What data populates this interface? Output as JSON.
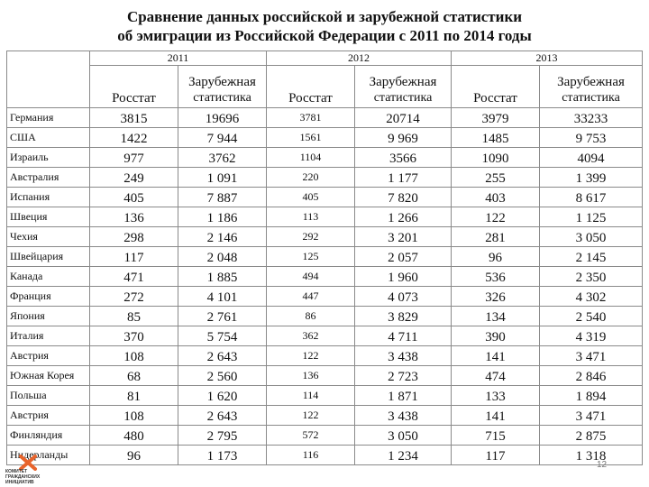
{
  "title_line1": "Сравнение данных российской и зарубежной статистики",
  "title_line2": "об эмиграции из Российской Федерации с 2011 по 2014 годы",
  "years": [
    "2011",
    "2012",
    "2013"
  ],
  "col_rosstat": "Росстат",
  "col_foreign_1": "Зарубежная",
  "col_foreign_2": "статистика",
  "rows": [
    {
      "country": "Германия",
      "r2011": "3815",
      "z2011": "19696",
      "r2012": "3781",
      "z2012": "20714",
      "r2013": "3979",
      "z2013": "33233"
    },
    {
      "country": "США",
      "r2011": "1422",
      "z2011": "7 944",
      "r2012": "1561",
      "z2012": "9 969",
      "r2013": "1485",
      "z2013": "9 753"
    },
    {
      "country": "Израиль",
      "r2011": "977",
      "z2011": "3762",
      "r2012": "1104",
      "z2012": "3566",
      "r2013": "1090",
      "z2013": "4094"
    },
    {
      "country": "Австралия",
      "r2011": "249",
      "z2011": "1 091",
      "r2012": "220",
      "z2012": "1 177",
      "r2013": "255",
      "z2013": "1 399"
    },
    {
      "country": "Испания",
      "r2011": "405",
      "z2011": "7 887",
      "r2012": "405",
      "z2012": "7 820",
      "r2013": "403",
      "z2013": "8 617"
    },
    {
      "country": "Швеция",
      "r2011": "136",
      "z2011": "1 186",
      "r2012": "113",
      "z2012": "1 266",
      "r2013": "122",
      "z2013": "1 125"
    },
    {
      "country": "Чехия",
      "r2011": "298",
      "z2011": "2 146",
      "r2012": "292",
      "z2012": "3 201",
      "r2013": "281",
      "z2013": "3 050"
    },
    {
      "country": "Швейцария",
      "r2011": "117",
      "z2011": "2 048",
      "r2012": "125",
      "z2012": "2 057",
      "r2013": "96",
      "z2013": "2 145"
    },
    {
      "country": "Канада",
      "r2011": "471",
      "z2011": "1 885",
      "r2012": "494",
      "z2012": "1 960",
      "r2013": "536",
      "z2013": "2 350"
    },
    {
      "country": "Франция",
      "r2011": "272",
      "z2011": "4 101",
      "r2012": "447",
      "z2012": "4 073",
      "r2013": "326",
      "z2013": "4 302"
    },
    {
      "country": "Япония",
      "r2011": "85",
      "z2011": "2 761",
      "r2012": "86",
      "z2012": "3 829",
      "r2013": "134",
      "z2013": "2 540"
    },
    {
      "country": "Италия",
      "r2011": "370",
      "z2011": "5 754",
      "r2012": "362",
      "z2012": "4 711",
      "r2013": "390",
      "z2013": "4 319"
    },
    {
      "country": "Австрия",
      "r2011": "108",
      "z2011": "2 643",
      "r2012": "122",
      "z2012": "3 438",
      "r2013": "141",
      "z2013": "3 471"
    },
    {
      "country": "Южная Корея",
      "r2011": "68",
      "z2011": "2 560",
      "r2012": "136",
      "z2012": "2 723",
      "r2013": "474",
      "z2013": "2 846"
    },
    {
      "country": "Польша",
      "r2011": "81",
      "z2011": "1 620",
      "r2012": "114",
      "z2012": "1 871",
      "r2013": "133",
      "z2013": "1 894"
    },
    {
      "country": "Австрия",
      "r2011": "108",
      "z2011": "2 643",
      "r2012": "122",
      "z2012": "3 438",
      "r2013": "141",
      "z2013": "3 471"
    },
    {
      "country": "Финляндия",
      "r2011": "480",
      "z2011": "2 795",
      "r2012": "572",
      "z2012": "3 050",
      "r2013": "715",
      "z2013": "2 875"
    },
    {
      "country": "Нидерланды",
      "r2011": "96",
      "z2011": "1 173",
      "r2012": "116",
      "z2012": "1 234",
      "r2013": "117",
      "z2013": "1 318"
    }
  ],
  "logo_text": [
    "КОМИТЕТ",
    "ГРАЖДАНСКИХ",
    "ИНИЦИАТИВ"
  ],
  "logo_icon": "kgi-logo-icon",
  "accent_color": "#e8642c",
  "page_number": "12"
}
